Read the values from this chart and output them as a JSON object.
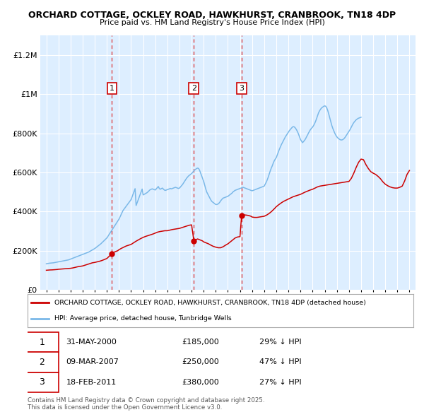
{
  "title1": "ORCHARD COTTAGE, OCKLEY ROAD, HAWKHURST, CRANBROOK, TN18 4DP",
  "title2": "Price paid vs. HM Land Registry's House Price Index (HPI)",
  "bg_color": "#ddeeff",
  "ylim": [
    0,
    1300000
  ],
  "yticks": [
    0,
    200000,
    400000,
    600000,
    800000,
    1000000,
    1200000
  ],
  "ytick_labels": [
    "£0",
    "£200K",
    "£400K",
    "£600K",
    "£800K",
    "£1M",
    "£1.2M"
  ],
  "legend_label_red": "ORCHARD COTTAGE, OCKLEY ROAD, HAWKHURST, CRANBROOK, TN18 4DP (detached house)",
  "legend_label_blue": "HPI: Average price, detached house, Tunbridge Wells",
  "footnote": "Contains HM Land Registry data © Crown copyright and database right 2025.\nThis data is licensed under the Open Government Licence v3.0.",
  "transactions": [
    {
      "num": 1,
      "date": "31-MAY-2000",
      "price": 185000,
      "pct": "29%",
      "year": 2000.42
    },
    {
      "num": 2,
      "date": "09-MAR-2007",
      "price": 250000,
      "pct": "47%",
      "year": 2007.19
    },
    {
      "num": 3,
      "date": "18-FEB-2011",
      "price": 380000,
      "pct": "27%",
      "year": 2011.13
    }
  ],
  "hpi_x": [
    1995.0,
    1995.083,
    1995.167,
    1995.25,
    1995.333,
    1995.417,
    1995.5,
    1995.583,
    1995.667,
    1995.75,
    1995.833,
    1995.917,
    1996.0,
    1996.083,
    1996.167,
    1996.25,
    1996.333,
    1996.417,
    1996.5,
    1996.583,
    1996.667,
    1996.75,
    1996.833,
    1996.917,
    1997.0,
    1997.083,
    1997.167,
    1997.25,
    1997.333,
    1997.417,
    1997.5,
    1997.583,
    1997.667,
    1997.75,
    1997.833,
    1997.917,
    1998.0,
    1998.083,
    1998.167,
    1998.25,
    1998.333,
    1998.417,
    1998.5,
    1998.583,
    1998.667,
    1998.75,
    1998.833,
    1998.917,
    1999.0,
    1999.083,
    1999.167,
    1999.25,
    1999.333,
    1999.417,
    1999.5,
    1999.583,
    1999.667,
    1999.75,
    1999.833,
    1999.917,
    2000.0,
    2000.083,
    2000.167,
    2000.25,
    2000.333,
    2000.417,
    2000.5,
    2000.583,
    2000.667,
    2000.75,
    2000.833,
    2000.917,
    2001.0,
    2001.083,
    2001.167,
    2001.25,
    2001.333,
    2001.417,
    2001.5,
    2001.583,
    2001.667,
    2001.75,
    2001.833,
    2001.917,
    2002.0,
    2002.083,
    2002.167,
    2002.25,
    2002.333,
    2002.417,
    2002.5,
    2002.583,
    2002.667,
    2002.75,
    2002.833,
    2002.917,
    2003.0,
    2003.083,
    2003.167,
    2003.25,
    2003.333,
    2003.417,
    2003.5,
    2003.583,
    2003.667,
    2003.75,
    2003.833,
    2003.917,
    2004.0,
    2004.083,
    2004.167,
    2004.25,
    2004.333,
    2004.417,
    2004.5,
    2004.583,
    2004.667,
    2004.75,
    2004.833,
    2004.917,
    2005.0,
    2005.083,
    2005.167,
    2005.25,
    2005.333,
    2005.417,
    2005.5,
    2005.583,
    2005.667,
    2005.75,
    2005.833,
    2005.917,
    2006.0,
    2006.083,
    2006.167,
    2006.25,
    2006.333,
    2006.417,
    2006.5,
    2006.583,
    2006.667,
    2006.75,
    2006.833,
    2006.917,
    2007.0,
    2007.083,
    2007.167,
    2007.25,
    2007.333,
    2007.417,
    2007.5,
    2007.583,
    2007.667,
    2007.75,
    2007.833,
    2007.917,
    2008.0,
    2008.083,
    2008.167,
    2008.25,
    2008.333,
    2008.417,
    2008.5,
    2008.583,
    2008.667,
    2008.75,
    2008.833,
    2008.917,
    2009.0,
    2009.083,
    2009.167,
    2009.25,
    2009.333,
    2009.417,
    2009.5,
    2009.583,
    2009.667,
    2009.75,
    2009.833,
    2009.917,
    2010.0,
    2010.083,
    2010.167,
    2010.25,
    2010.333,
    2010.417,
    2010.5,
    2010.583,
    2010.667,
    2010.75,
    2010.833,
    2010.917,
    2011.0,
    2011.083,
    2011.167,
    2011.25,
    2011.333,
    2011.417,
    2011.5,
    2011.583,
    2011.667,
    2011.75,
    2011.833,
    2011.917,
    2012.0,
    2012.083,
    2012.167,
    2012.25,
    2012.333,
    2012.417,
    2012.5,
    2012.583,
    2012.667,
    2012.75,
    2012.833,
    2012.917,
    2013.0,
    2013.083,
    2013.167,
    2013.25,
    2013.333,
    2013.417,
    2013.5,
    2013.583,
    2013.667,
    2013.75,
    2013.833,
    2013.917,
    2014.0,
    2014.083,
    2014.167,
    2014.25,
    2014.333,
    2014.417,
    2014.5,
    2014.583,
    2014.667,
    2014.75,
    2014.833,
    2014.917,
    2015.0,
    2015.083,
    2015.167,
    2015.25,
    2015.333,
    2015.417,
    2015.5,
    2015.583,
    2015.667,
    2015.75,
    2015.833,
    2015.917,
    2016.0,
    2016.083,
    2016.167,
    2016.25,
    2016.333,
    2016.417,
    2016.5,
    2016.583,
    2016.667,
    2016.75,
    2016.833,
    2016.917,
    2017.0,
    2017.083,
    2017.167,
    2017.25,
    2017.333,
    2017.417,
    2017.5,
    2017.583,
    2017.667,
    2017.75,
    2017.833,
    2017.917,
    2018.0,
    2018.083,
    2018.167,
    2018.25,
    2018.333,
    2018.417,
    2018.5,
    2018.583,
    2018.667,
    2018.75,
    2018.833,
    2018.917,
    2019.0,
    2019.083,
    2019.167,
    2019.25,
    2019.333,
    2019.417,
    2019.5,
    2019.583,
    2019.667,
    2019.75,
    2019.833,
    2019.917,
    2020.0,
    2020.083,
    2020.167,
    2020.25,
    2020.333,
    2020.417,
    2020.5,
    2020.583,
    2020.667,
    2020.75,
    2020.833,
    2020.917,
    2021.0,
    2021.083,
    2021.167,
    2021.25,
    2021.333,
    2021.417,
    2021.5,
    2021.583,
    2021.667,
    2021.75,
    2021.833,
    2021.917,
    2022.0,
    2022.083,
    2022.167,
    2022.25,
    2022.333,
    2022.417,
    2022.5,
    2022.583,
    2022.667,
    2022.75,
    2022.833,
    2022.917,
    2023.0,
    2023.083,
    2023.167,
    2023.25,
    2023.333,
    2023.417,
    2023.5,
    2023.583,
    2023.667,
    2023.75,
    2023.833,
    2023.917,
    2024.0,
    2024.083,
    2024.167,
    2024.25,
    2024.333,
    2024.417,
    2024.5,
    2024.583,
    2024.667,
    2024.75,
    2024.833,
    2024.917,
    2025.0
  ],
  "hpi_y": [
    133000,
    134000,
    135000,
    136000,
    136500,
    137000,
    137500,
    138000,
    139000,
    140000,
    141000,
    142000,
    143000,
    144000,
    145000,
    146000,
    147000,
    148000,
    149000,
    150000,
    151000,
    152000,
    153000,
    155000,
    157000,
    159000,
    161000,
    163000,
    165000,
    167000,
    169000,
    171000,
    173000,
    175000,
    177000,
    179000,
    181000,
    183000,
    185000,
    187000,
    189000,
    191000,
    193000,
    196000,
    199000,
    202000,
    205000,
    208000,
    211000,
    215000,
    219000,
    223000,
    227000,
    231000,
    235000,
    240000,
    245000,
    250000,
    255000,
    260000,
    265000,
    273000,
    281000,
    289000,
    297000,
    305000,
    313000,
    321000,
    329000,
    337000,
    345000,
    353000,
    361000,
    372000,
    383000,
    394000,
    405000,
    412000,
    419000,
    426000,
    433000,
    440000,
    447000,
    454000,
    461000,
    475000,
    489000,
    503000,
    517000,
    431000,
    445000,
    459000,
    473000,
    487000,
    501000,
    515000,
    485000,
    488000,
    491000,
    494000,
    497000,
    502000,
    507000,
    512000,
    514000,
    516000,
    514000,
    512000,
    510000,
    516000,
    522000,
    528000,
    518000,
    514000,
    517000,
    520000,
    515000,
    510000,
    508000,
    510000,
    512000,
    514000,
    516000,
    518000,
    516000,
    518000,
    520000,
    522000,
    524000,
    522000,
    520000,
    518000,
    520000,
    526000,
    532000,
    538000,
    546000,
    554000,
    562000,
    570000,
    576000,
    582000,
    586000,
    590000,
    594000,
    600000,
    606000,
    612000,
    616000,
    620000,
    622000,
    620000,
    610000,
    596000,
    582000,
    568000,
    554000,
    535000,
    516000,
    500000,
    490000,
    480000,
    470000,
    460000,
    452000,
    448000,
    444000,
    440000,
    436000,
    436000,
    438000,
    442000,
    448000,
    456000,
    462000,
    468000,
    470000,
    472000,
    474000,
    476000,
    478000,
    482000,
    486000,
    490000,
    494000,
    500000,
    504000,
    508000,
    510000,
    512000,
    514000,
    516000,
    518000,
    520000,
    522000,
    524000,
    522000,
    520000,
    518000,
    516000,
    514000,
    512000,
    510000,
    508000,
    506000,
    508000,
    510000,
    512000,
    514000,
    516000,
    518000,
    520000,
    522000,
    524000,
    526000,
    528000,
    530000,
    540000,
    550000,
    562000,
    576000,
    592000,
    608000,
    622000,
    634000,
    648000,
    660000,
    668000,
    676000,
    690000,
    704000,
    718000,
    730000,
    742000,
    752000,
    762000,
    772000,
    782000,
    790000,
    798000,
    806000,
    814000,
    820000,
    826000,
    832000,
    834000,
    832000,
    826000,
    818000,
    808000,
    796000,
    782000,
    768000,
    760000,
    752000,
    758000,
    764000,
    772000,
    782000,
    792000,
    802000,
    812000,
    820000,
    826000,
    832000,
    840000,
    850000,
    862000,
    876000,
    892000,
    906000,
    916000,
    924000,
    930000,
    934000,
    938000,
    940000,
    938000,
    930000,
    916000,
    898000,
    878000,
    858000,
    840000,
    825000,
    812000,
    800000,
    790000,
    782000,
    776000,
    772000,
    768000,
    766000,
    766000,
    768000,
    772000,
    778000,
    786000,
    794000,
    802000,
    810000,
    818000,
    828000,
    838000,
    848000,
    856000,
    862000,
    868000,
    872000,
    876000,
    878000,
    880000,
    882000
  ],
  "red_x": [
    1995.0,
    1995.1,
    1995.2,
    1995.3,
    1995.5,
    1995.7,
    1995.9,
    1996.0,
    1996.2,
    1996.4,
    1996.6,
    1996.8,
    1997.0,
    1997.2,
    1997.4,
    1997.6,
    1997.8,
    1998.0,
    1998.2,
    1998.4,
    1998.6,
    1998.8,
    1999.0,
    1999.2,
    1999.4,
    1999.6,
    1999.8,
    2000.0,
    2000.42,
    2000.5,
    2000.7,
    2000.9,
    2001.0,
    2001.2,
    2001.4,
    2001.6,
    2001.8,
    2002.0,
    2002.2,
    2002.4,
    2002.6,
    2002.8,
    2003.0,
    2003.2,
    2003.4,
    2003.6,
    2003.8,
    2004.0,
    2004.2,
    2004.4,
    2004.6,
    2004.8,
    2005.0,
    2005.2,
    2005.4,
    2005.6,
    2005.8,
    2006.0,
    2006.2,
    2006.4,
    2006.6,
    2006.8,
    2007.0,
    2007.19,
    2007.3,
    2007.5,
    2007.7,
    2007.9,
    2008.0,
    2008.2,
    2008.4,
    2008.6,
    2008.8,
    2009.0,
    2009.2,
    2009.4,
    2009.6,
    2009.8,
    2010.0,
    2010.2,
    2010.4,
    2010.6,
    2010.8,
    2011.0,
    2011.13,
    2011.3,
    2011.5,
    2011.7,
    2011.9,
    2012.0,
    2012.2,
    2012.4,
    2012.6,
    2012.8,
    2013.0,
    2013.2,
    2013.4,
    2013.6,
    2013.8,
    2014.0,
    2014.2,
    2014.4,
    2014.6,
    2014.8,
    2015.0,
    2015.2,
    2015.4,
    2015.6,
    2015.8,
    2016.0,
    2016.2,
    2016.4,
    2016.6,
    2016.8,
    2017.0,
    2017.2,
    2017.4,
    2017.6,
    2017.8,
    2018.0,
    2018.2,
    2018.4,
    2018.6,
    2018.8,
    2019.0,
    2019.2,
    2019.4,
    2019.6,
    2019.8,
    2020.0,
    2020.2,
    2020.4,
    2020.6,
    2020.8,
    2021.0,
    2021.2,
    2021.4,
    2021.6,
    2021.8,
    2022.0,
    2022.2,
    2022.4,
    2022.6,
    2022.8,
    2023.0,
    2023.2,
    2023.4,
    2023.6,
    2023.8,
    2024.0,
    2024.2,
    2024.4,
    2024.6,
    2024.8,
    2025.0
  ],
  "red_y": [
    100000,
    100500,
    101000,
    101500,
    102000,
    103000,
    104000,
    105000,
    106000,
    107000,
    108000,
    109000,
    110000,
    112000,
    115000,
    118000,
    120000,
    122000,
    126000,
    130000,
    134000,
    138000,
    140000,
    143000,
    146000,
    150000,
    155000,
    160000,
    185000,
    190000,
    195000,
    200000,
    205000,
    212000,
    218000,
    224000,
    228000,
    232000,
    240000,
    248000,
    255000,
    262000,
    268000,
    273000,
    277000,
    281000,
    285000,
    290000,
    295000,
    298000,
    300000,
    302000,
    302000,
    305000,
    308000,
    310000,
    312000,
    314000,
    318000,
    322000,
    326000,
    330000,
    332000,
    250000,
    255000,
    260000,
    255000,
    250000,
    245000,
    240000,
    235000,
    228000,
    222000,
    218000,
    215000,
    215000,
    220000,
    228000,
    235000,
    245000,
    255000,
    265000,
    270000,
    272000,
    380000,
    383000,
    382000,
    380000,
    376000,
    372000,
    370000,
    370000,
    372000,
    374000,
    376000,
    382000,
    390000,
    400000,
    412000,
    425000,
    435000,
    444000,
    452000,
    458000,
    464000,
    470000,
    476000,
    480000,
    484000,
    488000,
    494000,
    500000,
    505000,
    510000,
    514000,
    520000,
    526000,
    530000,
    532000,
    534000,
    536000,
    538000,
    540000,
    542000,
    544000,
    546000,
    548000,
    550000,
    552000,
    554000,
    570000,
    596000,
    626000,
    652000,
    668000,
    665000,
    640000,
    620000,
    604000,
    596000,
    590000,
    580000,
    568000,
    552000,
    540000,
    532000,
    526000,
    522000,
    520000,
    520000,
    524000,
    530000,
    556000,
    590000,
    610000
  ],
  "xlim": [
    1994.5,
    2025.5
  ],
  "xticks": [
    1995,
    1996,
    1997,
    1998,
    1999,
    2000,
    2001,
    2002,
    2003,
    2004,
    2005,
    2006,
    2007,
    2008,
    2009,
    2010,
    2011,
    2012,
    2013,
    2014,
    2015,
    2016,
    2017,
    2018,
    2019,
    2020,
    2021,
    2022,
    2023,
    2024,
    2025
  ],
  "vline_color": "#dd3333",
  "grid_color": "#ffffff",
  "blue_color": "#7ab8e8",
  "red_color": "#cc0000"
}
